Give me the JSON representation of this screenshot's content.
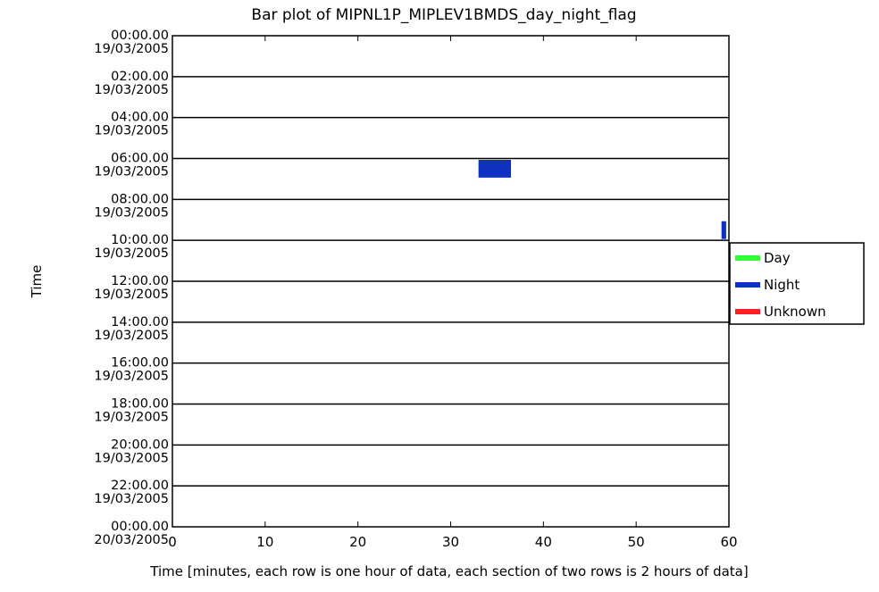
{
  "chart_data": {
    "type": "bar",
    "title": "Bar plot of MIPNL1P_MIPLEV1BMDS_day_night_flag",
    "xlabel": "Time [minutes, each row is one hour of data, each section of two rows is 2 hours of data]",
    "ylabel": "Time",
    "xlim": [
      0,
      60
    ],
    "x_ticks": [
      "0",
      "10",
      "20",
      "30",
      "40",
      "50",
      "60"
    ],
    "y_ticks": [
      {
        "time": "00:00.00",
        "date": "19/03/2005"
      },
      {
        "time": "02:00.00",
        "date": "19/03/2005"
      },
      {
        "time": "04:00.00",
        "date": "19/03/2005"
      },
      {
        "time": "06:00.00",
        "date": "19/03/2005"
      },
      {
        "time": "08:00.00",
        "date": "19/03/2005"
      },
      {
        "time": "10:00.00",
        "date": "19/03/2005"
      },
      {
        "time": "12:00.00",
        "date": "19/03/2005"
      },
      {
        "time": "14:00.00",
        "date": "19/03/2005"
      },
      {
        "time": "16:00.00",
        "date": "19/03/2005"
      },
      {
        "time": "18:00.00",
        "date": "19/03/2005"
      },
      {
        "time": "20:00.00",
        "date": "19/03/2005"
      },
      {
        "time": "22:00.00",
        "date": "19/03/2005"
      },
      {
        "time": "00:00.00",
        "date": "20/03/2005"
      }
    ],
    "legend": {
      "placement": "right",
      "entries": [
        {
          "name": "Day",
          "color": "#33ff33"
        },
        {
          "name": "Night",
          "color": "#1030c0"
        },
        {
          "name": "Unknown",
          "color": "#ff2020"
        }
      ]
    },
    "series": [
      {
        "name": "Night",
        "color": "#1030c0",
        "segments": [
          {
            "hour": 6,
            "start_min": 33,
            "end_min": 36.5
          },
          {
            "hour": 9,
            "start_min": 59.2,
            "end_min": 59.7
          }
        ]
      }
    ],
    "grid": true
  }
}
